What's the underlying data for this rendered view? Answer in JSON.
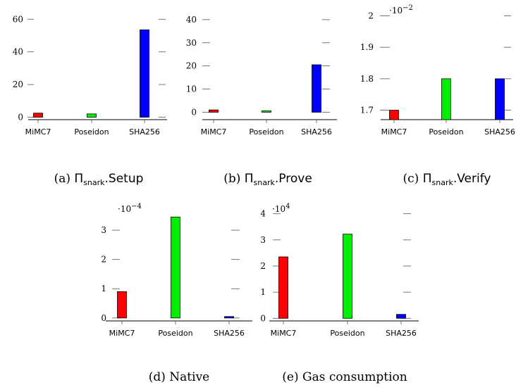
{
  "colors": {
    "MiMC7": "#ff0000",
    "Poseidon": "#00ee00",
    "SHA256": "#0000ff"
  },
  "chart_data": [
    {
      "type": "bar",
      "categories": [
        "MiMC7",
        "Poseidon",
        "SHA256"
      ],
      "values": [
        2.5,
        2.0,
        53.5
      ],
      "ylim": [
        -1.5,
        64
      ],
      "yticks": [
        0,
        20,
        40,
        60
      ],
      "ytick_labels": [
        "0",
        "20",
        "40",
        "60"
      ],
      "exponent": "",
      "caption": {
        "label": "(a)",
        "pi": "Π",
        "sub": "snark",
        "suffix": ".Setup"
      }
    },
    {
      "type": "bar",
      "categories": [
        "MiMC7",
        "Poseidon",
        "SHA256"
      ],
      "values": [
        1.0,
        0.6,
        20.5
      ],
      "ylim": [
        -3.2,
        43
      ],
      "yticks": [
        0,
        10,
        20,
        30,
        40
      ],
      "ytick_labels": [
        "0",
        "10",
        "20",
        "30",
        "40"
      ],
      "exponent": "",
      "caption": {
        "label": "(b)",
        "pi": "Π",
        "sub": "snark",
        "suffix": ".Prove"
      }
    },
    {
      "type": "bar",
      "categories": [
        "MiMC7",
        "Poseidon",
        "SHA256"
      ],
      "values": [
        1.7,
        1.8,
        1.8
      ],
      "ylim": [
        1.67,
        2.01
      ],
      "yticks": [
        1.7,
        1.8,
        1.9,
        2.0
      ],
      "ytick_labels": [
        "1.7",
        "1.8",
        "1.9",
        "2"
      ],
      "exponent": "·10",
      "exponent_power": "−2",
      "caption": {
        "label": "(c)",
        "pi": "Π",
        "sub": "snark",
        "suffix": ".Verify"
      }
    },
    {
      "type": "bar",
      "categories": [
        "MiMC7",
        "Poseidon",
        "SHA256"
      ],
      "values": [
        0.9,
        3.45,
        0.05
      ],
      "ylim": [
        -0.1,
        3.65
      ],
      "yticks": [
        0,
        1,
        2,
        3
      ],
      "ytick_labels": [
        "0",
        "1",
        "2",
        "3"
      ],
      "exponent": "·10",
      "exponent_power": "−4",
      "caption": {
        "label": "(d)",
        "text": "Native"
      }
    },
    {
      "type": "bar",
      "categories": [
        "MiMC7",
        "Poseidon",
        "SHA256"
      ],
      "values": [
        2.35,
        3.22,
        0.15
      ],
      "ylim": [
        -0.1,
        4.1
      ],
      "yticks": [
        0,
        1,
        2,
        3,
        4
      ],
      "ytick_labels": [
        "0",
        "1",
        "2",
        "3",
        "4"
      ],
      "exponent": "·10",
      "exponent_power": "4",
      "caption": {
        "label": "(e)",
        "text": "Gas consumption"
      }
    }
  ]
}
